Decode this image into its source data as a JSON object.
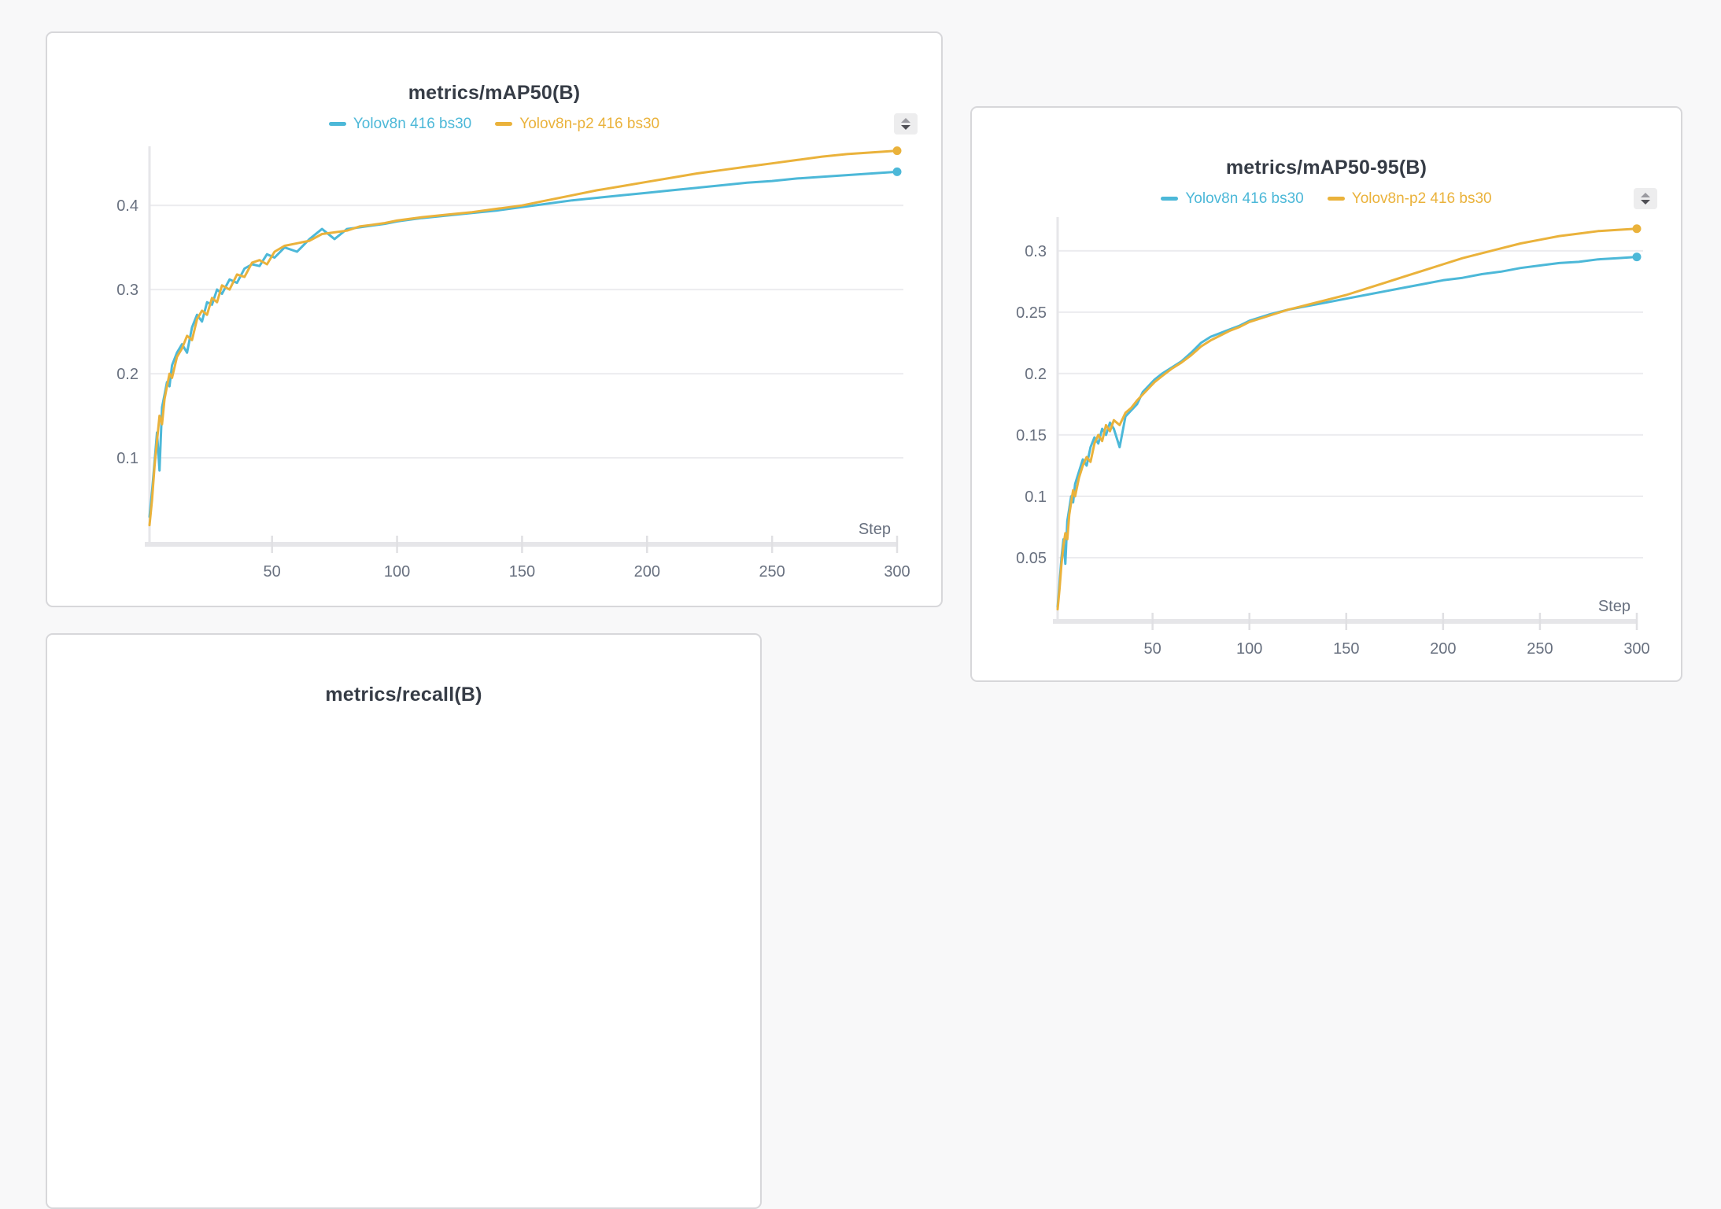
{
  "colors": {
    "page_background": "#f8f8f9",
    "panel_background": "#ffffff",
    "panel_border": "#d7d7da",
    "grid": "#ececef",
    "axis": "#e6e6e9",
    "tick_mark": "#e0e0e3",
    "tick_text": "#68707f",
    "title_text": "#363c46",
    "series_cyan": "#4cb8d8",
    "series_orange": "#eab23b"
  },
  "icons": {
    "panel_action": "up-down-stepper"
  },
  "chart_data": [
    {
      "type": "line",
      "title": "metrics/mAP50(B)",
      "xlabel": "Step",
      "xlim": [
        1,
        300
      ],
      "ylim": [
        0,
        0.474
      ],
      "xticks": [
        50,
        100,
        150,
        200,
        250,
        300
      ],
      "yticks": [
        0.1,
        0.2,
        0.3,
        0.4
      ],
      "grid": "horizontal-only",
      "legend_position": "top-center",
      "x": [
        1,
        2,
        3,
        4,
        5,
        6,
        7,
        8,
        9,
        10,
        12,
        14,
        16,
        18,
        20,
        22,
        24,
        26,
        28,
        30,
        33,
        36,
        39,
        42,
        45,
        48,
        51,
        55,
        60,
        65,
        70,
        75,
        80,
        85,
        90,
        95,
        100,
        110,
        120,
        130,
        140,
        150,
        160,
        170,
        180,
        190,
        200,
        210,
        220,
        230,
        240,
        250,
        260,
        270,
        280,
        290,
        300
      ],
      "series": [
        {
          "name": "Yolov8n 416 bs30",
          "color": "#4cb8d8",
          "values": [
            0.03,
            0.06,
            0.095,
            0.13,
            0.085,
            0.16,
            0.175,
            0.19,
            0.185,
            0.21,
            0.225,
            0.235,
            0.225,
            0.255,
            0.27,
            0.262,
            0.285,
            0.282,
            0.3,
            0.295,
            0.312,
            0.308,
            0.325,
            0.33,
            0.328,
            0.342,
            0.338,
            0.35,
            0.345,
            0.36,
            0.372,
            0.36,
            0.372,
            0.374,
            0.376,
            0.378,
            0.381,
            0.385,
            0.388,
            0.391,
            0.394,
            0.398,
            0.402,
            0.406,
            0.409,
            0.412,
            0.415,
            0.418,
            0.421,
            0.424,
            0.427,
            0.429,
            0.432,
            0.434,
            0.436,
            0.438,
            0.44
          ]
        },
        {
          "name": "Yolov8n-p2 416 bs30",
          "color": "#eab23b",
          "values": [
            0.02,
            0.05,
            0.09,
            0.12,
            0.15,
            0.14,
            0.17,
            0.185,
            0.2,
            0.195,
            0.22,
            0.23,
            0.245,
            0.24,
            0.265,
            0.275,
            0.27,
            0.29,
            0.285,
            0.305,
            0.3,
            0.318,
            0.315,
            0.332,
            0.335,
            0.33,
            0.345,
            0.352,
            0.355,
            0.358,
            0.366,
            0.368,
            0.37,
            0.375,
            0.377,
            0.379,
            0.382,
            0.386,
            0.389,
            0.392,
            0.396,
            0.4,
            0.406,
            0.412,
            0.418,
            0.423,
            0.428,
            0.433,
            0.438,
            0.442,
            0.446,
            0.45,
            0.454,
            0.458,
            0.461,
            0.463,
            0.465
          ]
        }
      ]
    },
    {
      "type": "line",
      "title": "metrics/mAP50-95(B)",
      "xlabel": "Step",
      "xlim": [
        1,
        300
      ],
      "ylim": [
        0,
        0.33
      ],
      "xticks": [
        50,
        100,
        150,
        200,
        250,
        300
      ],
      "yticks": [
        0.05,
        0.1,
        0.15,
        0.2,
        0.25,
        0.3
      ],
      "grid": "horizontal-only",
      "legend_position": "top-center",
      "x": [
        1,
        2,
        3,
        4,
        5,
        6,
        7,
        8,
        9,
        10,
        12,
        14,
        16,
        18,
        20,
        22,
        24,
        26,
        28,
        30,
        33,
        36,
        39,
        42,
        45,
        48,
        51,
        55,
        60,
        65,
        70,
        75,
        80,
        85,
        90,
        95,
        100,
        110,
        120,
        130,
        140,
        150,
        160,
        170,
        180,
        190,
        200,
        210,
        220,
        230,
        240,
        250,
        260,
        270,
        280,
        290,
        300
      ],
      "series": [
        {
          "name": "Yolov8n 416 bs30",
          "color": "#4cb8d8",
          "values": [
            0.01,
            0.03,
            0.05,
            0.065,
            0.045,
            0.08,
            0.09,
            0.1,
            0.095,
            0.11,
            0.12,
            0.13,
            0.125,
            0.14,
            0.148,
            0.143,
            0.155,
            0.15,
            0.16,
            0.155,
            0.14,
            0.165,
            0.17,
            0.175,
            0.185,
            0.19,
            0.195,
            0.2,
            0.205,
            0.21,
            0.217,
            0.225,
            0.23,
            0.233,
            0.236,
            0.239,
            0.243,
            0.248,
            0.252,
            0.255,
            0.258,
            0.261,
            0.264,
            0.267,
            0.27,
            0.273,
            0.276,
            0.278,
            0.281,
            0.283,
            0.286,
            0.288,
            0.29,
            0.291,
            0.293,
            0.294,
            0.295
          ]
        },
        {
          "name": "Yolov8n-p2 416 bs30",
          "color": "#eab23b",
          "values": [
            0.008,
            0.025,
            0.045,
            0.06,
            0.07,
            0.065,
            0.085,
            0.095,
            0.105,
            0.1,
            0.115,
            0.125,
            0.132,
            0.128,
            0.143,
            0.15,
            0.145,
            0.158,
            0.153,
            0.162,
            0.158,
            0.168,
            0.172,
            0.178,
            0.183,
            0.188,
            0.193,
            0.198,
            0.204,
            0.209,
            0.215,
            0.222,
            0.227,
            0.231,
            0.235,
            0.238,
            0.242,
            0.247,
            0.252,
            0.256,
            0.26,
            0.264,
            0.269,
            0.274,
            0.279,
            0.284,
            0.289,
            0.294,
            0.298,
            0.302,
            0.306,
            0.309,
            0.312,
            0.314,
            0.316,
            0.317,
            0.318
          ]
        }
      ]
    },
    {
      "type": "line",
      "title": "metrics/recall(B)"
    }
  ]
}
